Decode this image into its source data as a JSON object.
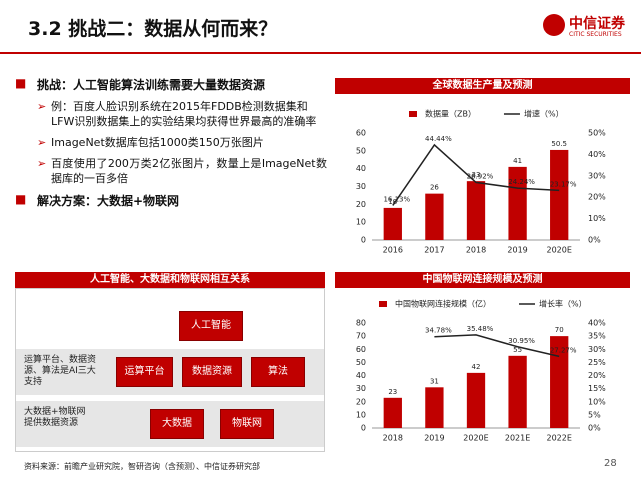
{
  "header": {
    "title": "3.2 挑战二：数据从何而来？",
    "logo": "中信证券",
    "logo_en": "CITIC SECURITIES"
  },
  "bullets": [
    {
      "text": "挑战：人工智能算法训练需要大量数据资源",
      "sub": [
        "例：百度人脸识别系统在2015年FDDB检测数据集和LFW识别数据集上的实验结果均获得世界最高的准确率",
        "ImageNet数据库包括1000类150万张图片",
        "百度使用了200万类2亿张图片，数量上是ImageNet数据库的一百多倍"
      ]
    },
    {
      "text": "解决方案：大数据+物联网",
      "sub": []
    }
  ],
  "diagram": {
    "title": "人工智能、大数据和物联网相互关系",
    "top": "人工智能",
    "row1_label": "运算平台、数据资源、算法是AI三大支持",
    "row1": [
      "运算平台",
      "数据资源",
      "算法"
    ],
    "row2_label": "大数据+物联网提供数据资源",
    "row2": [
      "大数据",
      "物联网"
    ]
  },
  "chart_data": [
    {
      "type": "bar",
      "title": "全球数据生产量及预测",
      "categories": [
        "2016",
        "2017",
        "2018",
        "2019",
        "2020E"
      ],
      "series": [
        {
          "name": "数据量（ZB）",
          "color": "#c00000",
          "values": [
            18,
            26,
            33,
            41,
            50.5
          ]
        },
        {
          "name": "增速（%）",
          "color": "#222222",
          "axis": "y2",
          "type": "line",
          "values": [
            16.13,
            44.44,
            26.92,
            24.24,
            23.17
          ],
          "value_labels": [
            "16.13%",
            "44.44%",
            "26.92%",
            "24.24%",
            "23.17%"
          ]
        }
      ],
      "ylim": [
        0,
        60
      ],
      "yticks": [
        0,
        10,
        20,
        30,
        40,
        50,
        60
      ],
      "y2lim": [
        0,
        50
      ],
      "y2ticks": [
        {
          "value": 0,
          "label": "0%"
        },
        {
          "value": 10,
          "label": "10%"
        },
        {
          "value": 20,
          "label": "20%"
        },
        {
          "value": 30,
          "label": "30%"
        },
        {
          "value": 40,
          "label": "40%"
        },
        {
          "value": 50,
          "label": "50%"
        }
      ]
    },
    {
      "type": "bar",
      "title": "中国物联网连接规模及预测",
      "categories": [
        "2018",
        "2019",
        "2020E",
        "2021E",
        "2022E"
      ],
      "series": [
        {
          "name": "中国物联网连接规模（亿）",
          "color": "#c00000",
          "values": [
            23,
            31,
            42,
            55,
            70
          ]
        },
        {
          "name": "增长率（%）",
          "color": "#222222",
          "axis": "y2",
          "type": "line",
          "values": [
            null,
            34.78,
            35.48,
            30.95,
            27.27
          ],
          "value_labels": [
            null,
            "34.78%",
            "35.48%",
            "30.95%",
            "27.27%"
          ]
        }
      ],
      "ylim": [
        0,
        80
      ],
      "yticks": [
        0,
        10,
        20,
        30,
        40,
        50,
        60,
        70,
        80
      ],
      "y2lim": [
        0,
        40
      ],
      "y2ticks": [
        {
          "value": 0,
          "label": "0%"
        },
        {
          "value": 5,
          "label": "5%"
        },
        {
          "value": 10,
          "label": "10%"
        },
        {
          "value": 15,
          "label": "15%"
        },
        {
          "value": 20,
          "label": "20%"
        },
        {
          "value": 25,
          "label": "25%"
        },
        {
          "value": 30,
          "label": "30%"
        },
        {
          "value": 35,
          "label": "35%"
        },
        {
          "value": 40,
          "label": "40%"
        }
      ]
    }
  ],
  "footer": {
    "source": "资料来源：前瞻产业研究院，智研咨询（含预测）、中信证券研究部",
    "page": "28"
  }
}
